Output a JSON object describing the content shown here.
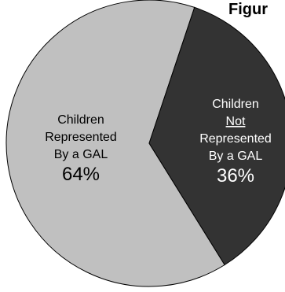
{
  "chart_data": {
    "type": "pie",
    "title": "Figur",
    "slices": [
      {
        "label_lines": [
          "Children",
          "Represented",
          "By a GAL"
        ],
        "underlined_line": -1,
        "value": 64,
        "value_label": "64%",
        "color": "#c0c0c0",
        "text_color": "#000000"
      },
      {
        "label_lines": [
          "Children",
          "Not",
          "Represented",
          "By a GAL"
        ],
        "underlined_line": 1,
        "value": 36,
        "value_label": "36%",
        "color": "#333333",
        "text_color": "#ffffff"
      }
    ],
    "legend": "none",
    "edge_color": "#000000"
  }
}
